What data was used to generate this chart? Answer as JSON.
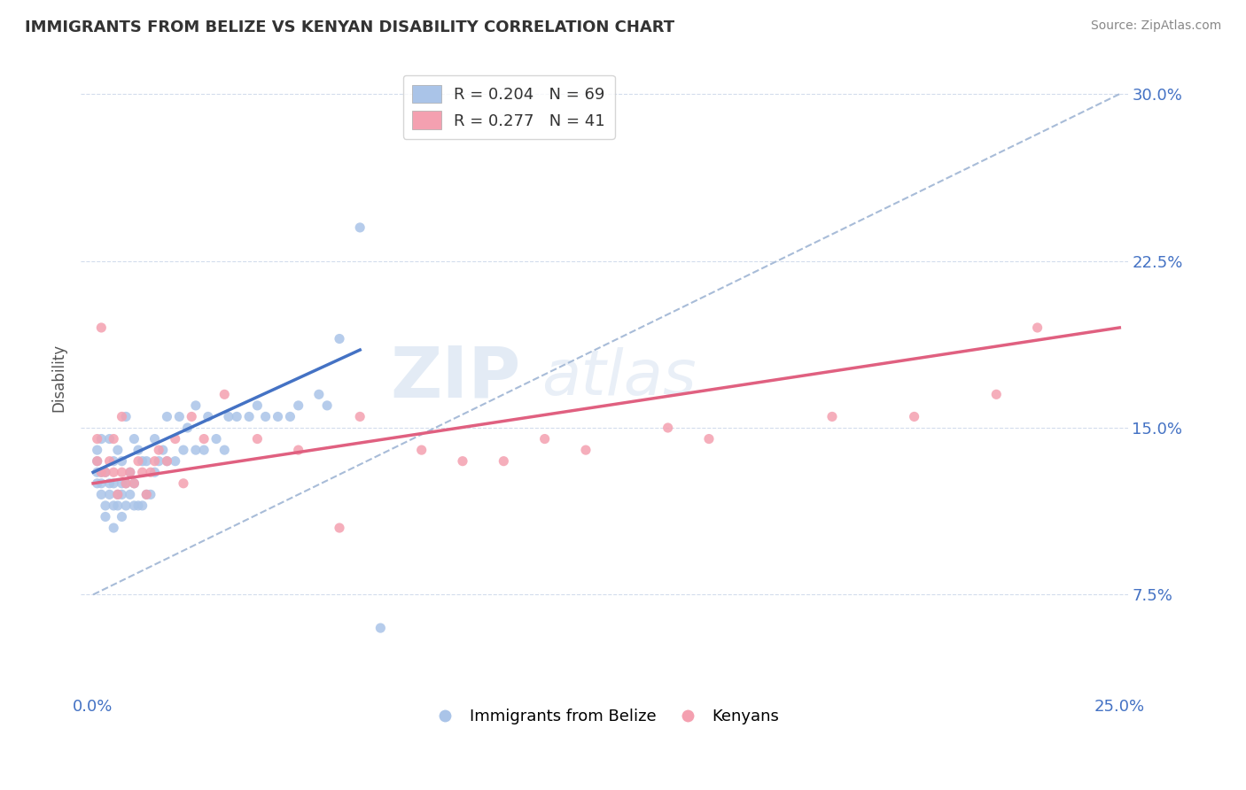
{
  "title": "IMMIGRANTS FROM BELIZE VS KENYAN DISABILITY CORRELATION CHART",
  "source": "Source: ZipAtlas.com",
  "ylabel": "Disability",
  "xlim": [
    0.0,
    0.25
  ],
  "ylim": [
    0.03,
    0.315
  ],
  "xticks": [
    0.0,
    0.05,
    0.1,
    0.15,
    0.2,
    0.25
  ],
  "xtick_labels": [
    "0.0%",
    "",
    "",
    "",
    "",
    "25.0%"
  ],
  "ytick_labels": [
    "7.5%",
    "15.0%",
    "22.5%",
    "30.0%"
  ],
  "yticks": [
    0.075,
    0.15,
    0.225,
    0.3
  ],
  "legend_label1": "R = 0.204   N = 69",
  "legend_label2": "R = 0.277   N = 41",
  "legend_bottom_label1": "Immigrants from Belize",
  "legend_bottom_label2": "Kenyans",
  "color_blue": "#aac4e8",
  "color_pink": "#f4a0b0",
  "color_blue_line": "#4472c4",
  "color_pink_line": "#e06080",
  "color_dashed": "#a8bcd8",
  "background_color": "#ffffff",
  "belize_x": [
    0.001,
    0.001,
    0.001,
    0.001,
    0.002,
    0.002,
    0.002,
    0.002,
    0.003,
    0.003,
    0.003,
    0.004,
    0.004,
    0.004,
    0.005,
    0.005,
    0.005,
    0.005,
    0.006,
    0.006,
    0.006,
    0.007,
    0.007,
    0.007,
    0.007,
    0.008,
    0.008,
    0.008,
    0.009,
    0.009,
    0.01,
    0.01,
    0.01,
    0.011,
    0.011,
    0.012,
    0.012,
    0.013,
    0.013,
    0.014,
    0.015,
    0.015,
    0.016,
    0.017,
    0.018,
    0.018,
    0.02,
    0.021,
    0.022,
    0.023,
    0.025,
    0.025,
    0.027,
    0.028,
    0.03,
    0.032,
    0.033,
    0.035,
    0.038,
    0.04,
    0.042,
    0.045,
    0.048,
    0.05,
    0.055,
    0.057,
    0.06,
    0.065,
    0.07
  ],
  "belize_y": [
    0.125,
    0.13,
    0.135,
    0.14,
    0.12,
    0.125,
    0.13,
    0.145,
    0.11,
    0.115,
    0.13,
    0.12,
    0.125,
    0.145,
    0.105,
    0.115,
    0.125,
    0.135,
    0.115,
    0.12,
    0.14,
    0.11,
    0.12,
    0.125,
    0.135,
    0.115,
    0.125,
    0.155,
    0.12,
    0.13,
    0.115,
    0.125,
    0.145,
    0.115,
    0.14,
    0.115,
    0.135,
    0.12,
    0.135,
    0.12,
    0.13,
    0.145,
    0.135,
    0.14,
    0.135,
    0.155,
    0.135,
    0.155,
    0.14,
    0.15,
    0.14,
    0.16,
    0.14,
    0.155,
    0.145,
    0.14,
    0.155,
    0.155,
    0.155,
    0.16,
    0.155,
    0.155,
    0.155,
    0.16,
    0.165,
    0.16,
    0.19,
    0.24,
    0.06
  ],
  "kenyan_x": [
    0.001,
    0.001,
    0.002,
    0.002,
    0.003,
    0.004,
    0.005,
    0.005,
    0.006,
    0.007,
    0.007,
    0.008,
    0.009,
    0.01,
    0.011,
    0.012,
    0.013,
    0.014,
    0.015,
    0.016,
    0.018,
    0.02,
    0.022,
    0.024,
    0.027,
    0.032,
    0.04,
    0.05,
    0.06,
    0.065,
    0.08,
    0.09,
    0.1,
    0.11,
    0.12,
    0.14,
    0.15,
    0.18,
    0.2,
    0.22,
    0.23
  ],
  "kenyan_y": [
    0.135,
    0.145,
    0.13,
    0.195,
    0.13,
    0.135,
    0.13,
    0.145,
    0.12,
    0.13,
    0.155,
    0.125,
    0.13,
    0.125,
    0.135,
    0.13,
    0.12,
    0.13,
    0.135,
    0.14,
    0.135,
    0.145,
    0.125,
    0.155,
    0.145,
    0.165,
    0.145,
    0.14,
    0.105,
    0.155,
    0.14,
    0.135,
    0.135,
    0.145,
    0.14,
    0.15,
    0.145,
    0.155,
    0.155,
    0.165,
    0.195
  ],
  "blue_line_x": [
    0.0,
    0.065
  ],
  "blue_line_y": [
    0.13,
    0.185
  ],
  "pink_line_x": [
    0.0,
    0.25
  ],
  "pink_line_y": [
    0.125,
    0.195
  ],
  "dash_line_x": [
    0.0,
    0.25
  ],
  "dash_line_y": [
    0.075,
    0.3
  ]
}
